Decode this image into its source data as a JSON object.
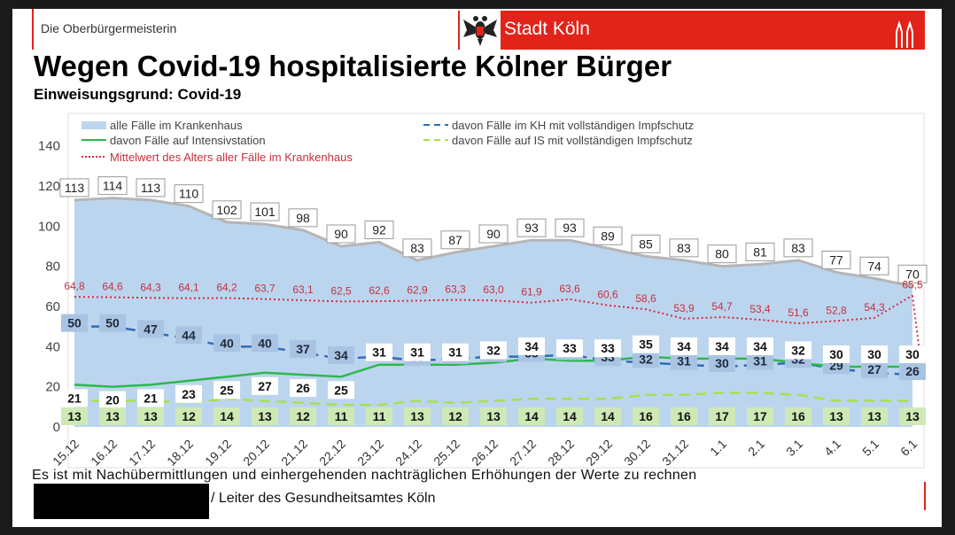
{
  "header": {
    "office": "Die Oberbürgermeisterin",
    "brand": "Stadt Köln",
    "brand_color": "#e2231a"
  },
  "title": "Wegen Covid-19 hospitalisierte Kölner Bürger",
  "subtitle": "Einweisungsgrund: Covid-19",
  "footnote": "Es ist mit Nachübermittlungen und einhergehenden nachträglichen Erhöhungen der Werte zu rechnen",
  "signature": "/ Leiter des Gesundheitsamtes Köln",
  "chart_data": {
    "type": "area",
    "categories": [
      "15.12",
      "16.12",
      "17.12",
      "18.12",
      "19.12",
      "20.12",
      "21.12",
      "22.12",
      "23.12",
      "24.12",
      "25.12",
      "26.12",
      "27.12",
      "28.12",
      "29.12",
      "30.12",
      "31.12",
      "1.1",
      "2.1",
      "3.1",
      "4.1",
      "5.1",
      "6.1"
    ],
    "ylim": [
      0,
      140
    ],
    "yticks": [
      0,
      20,
      40,
      60,
      80,
      100,
      120,
      140
    ],
    "legend": [
      {
        "label": "alle Fälle im Krankenhaus",
        "color": "#bcd5ef",
        "style": "area"
      },
      {
        "label": "davon Fälle im KH mit vollständigen Impfschutz",
        "color": "#2f6cb5",
        "style": "dashed"
      },
      {
        "label": "davon Fälle auf Intensivstation",
        "color": "#2db84b",
        "style": "solid"
      },
      {
        "label": "davon Fälle auf IS mit vollständigen Impfschutz",
        "color": "#a6e04f",
        "style": "dashed"
      },
      {
        "label": "Mittelwert des Alters aller Fälle im Krankenhaus",
        "color": "#d42a3a",
        "style": "dotted"
      }
    ],
    "series": [
      {
        "name": "alle Fälle im Krankenhaus",
        "values": [
          113,
          114,
          113,
          110,
          102,
          101,
          98,
          90,
          92,
          83,
          87,
          90,
          93,
          93,
          89,
          85,
          83,
          80,
          81,
          83,
          77,
          74,
          70
        ]
      },
      {
        "name": "davon Fälle im KH mit vollständigen Impfschutz",
        "values": [
          50,
          50,
          47,
          44,
          40,
          40,
          37,
          34,
          35,
          33,
          34,
          35,
          35,
          36,
          33,
          32,
          31,
          30,
          31,
          32,
          29,
          27,
          26
        ]
      },
      {
        "name": "davon Fälle auf Intensivstation",
        "values": [
          21,
          20,
          21,
          23,
          25,
          27,
          26,
          25,
          31,
          31,
          31,
          32,
          34,
          33,
          33,
          35,
          34,
          34,
          34,
          32,
          30,
          30,
          30
        ]
      },
      {
        "name": "davon Fälle auf IS mit vollständigen Impfschutz",
        "values": [
          13,
          13,
          13,
          12,
          14,
          13,
          12,
          11,
          11,
          13,
          12,
          13,
          14,
          14,
          14,
          16,
          16,
          17,
          17,
          16,
          13,
          13,
          13
        ]
      },
      {
        "name": "Mittelwert des Alters aller Fälle im Krankenhaus",
        "values": [
          64.8,
          64.6,
          64.3,
          64.1,
          64.2,
          63.7,
          63.1,
          62.5,
          62.6,
          62.9,
          63.3,
          63.0,
          61.9,
          63.6,
          60.6,
          58.6,
          53.9,
          54.7,
          53.4,
          51.6,
          52.8,
          54.3,
          65.5
        ],
        "labels": [
          "64,8",
          "64,6",
          "64,3",
          "64,1",
          "64,2",
          "63,7",
          "63,1",
          "62,5",
          "62,6",
          "62,9",
          "63,3",
          "63,0",
          "61,9",
          "63,6",
          "60,6",
          "58,6",
          "53,9",
          "54,7",
          "53,4",
          "51,6",
          "52,8",
          "54,3",
          "65,5"
        ]
      }
    ]
  }
}
